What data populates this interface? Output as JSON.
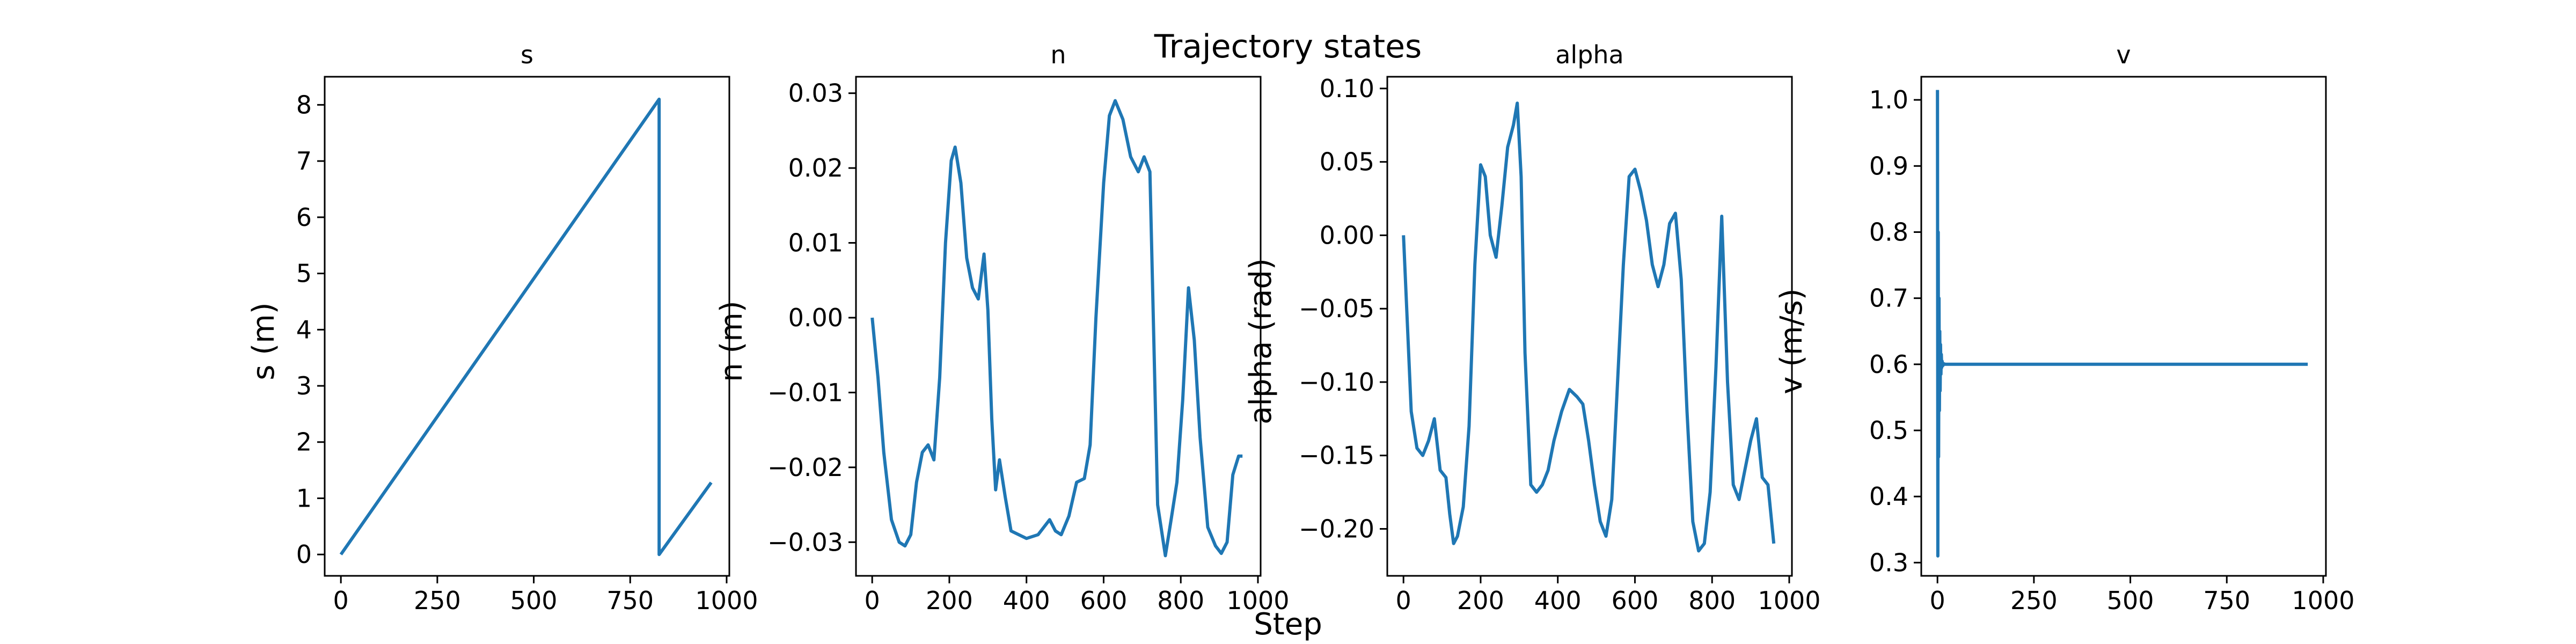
{
  "figure": {
    "suptitle": "Trajectory states",
    "xlabel": "Step"
  },
  "chart_data": [
    {
      "type": "line",
      "title": "s",
      "ylabel": "s (m)",
      "xlim": [
        -42,
        1007
      ],
      "ylim": [
        -0.38,
        8.5
      ],
      "xticks": [
        0,
        250,
        500,
        750,
        1000
      ],
      "yticks": [
        0,
        1,
        2,
        3,
        4,
        5,
        6,
        7,
        8
      ],
      "tick_labels_x": [
        "0",
        "250",
        "500",
        "750",
        "1000"
      ],
      "tick_labels_y": [
        "0",
        "1",
        "2",
        "3",
        "4",
        "5",
        "6",
        "7",
        "8"
      ],
      "color": "#1f77b4",
      "grid": false,
      "series": [
        {
          "x": [
            0,
            825,
            825,
            960
          ],
          "y": [
            0,
            8.1,
            0.0,
            1.28
          ]
        }
      ]
    },
    {
      "type": "line",
      "title": "n",
      "ylabel": "n (m)",
      "xlim": [
        -42,
        1007
      ],
      "ylim": [
        -0.0345,
        0.0322
      ],
      "xticks": [
        0,
        200,
        400,
        600,
        800,
        1000
      ],
      "yticks": [
        -0.03,
        -0.02,
        -0.01,
        0.0,
        0.01,
        0.02,
        0.03
      ],
      "tick_labels_x": [
        "0",
        "200",
        "400",
        "600",
        "800",
        "1000"
      ],
      "tick_labels_y": [
        "−0.03",
        "−0.02",
        "−0.01",
        "0.00",
        "0.01",
        "0.02",
        "0.03"
      ],
      "color": "#1f77b4",
      "grid": false,
      "series": [
        {
          "x": [
            0,
            15,
            30,
            50,
            70,
            85,
            100,
            115,
            130,
            145,
            160,
            175,
            190,
            205,
            215,
            230,
            245,
            260,
            275,
            290,
            300,
            310,
            320,
            330,
            345,
            360,
            380,
            400,
            430,
            460,
            475,
            490,
            510,
            530,
            550,
            565,
            580,
            600,
            615,
            630,
            650,
            670,
            690,
            705,
            720,
            740,
            760,
            775,
            790,
            805,
            820,
            835,
            850,
            870,
            890,
            905,
            920,
            935,
            950,
            960
          ],
          "y": [
            0.0,
            -0.008,
            -0.018,
            -0.027,
            -0.03,
            -0.0305,
            -0.029,
            -0.022,
            -0.018,
            -0.017,
            -0.019,
            -0.008,
            0.01,
            0.021,
            0.0228,
            0.018,
            0.008,
            0.004,
            0.0025,
            0.0085,
            0.001,
            -0.0135,
            -0.023,
            -0.019,
            -0.024,
            -0.0285,
            -0.029,
            -0.0295,
            -0.029,
            -0.027,
            -0.0285,
            -0.029,
            -0.0265,
            -0.022,
            -0.0215,
            -0.017,
            0.0,
            0.018,
            0.027,
            0.029,
            0.0265,
            0.0215,
            0.0195,
            0.0215,
            0.0195,
            -0.025,
            -0.0318,
            -0.027,
            -0.022,
            -0.011,
            0.004,
            -0.003,
            -0.016,
            -0.028,
            -0.0305,
            -0.0315,
            -0.03,
            -0.021,
            -0.0185,
            -0.0185
          ]
        }
      ]
    },
    {
      "type": "line",
      "title": "alpha",
      "ylabel": "alpha (rad)",
      "xlim": [
        -42,
        1007
      ],
      "ylim": [
        -0.232,
        0.108
      ],
      "xticks": [
        0,
        200,
        400,
        600,
        800,
        1000
      ],
      "yticks": [
        -0.2,
        -0.15,
        -0.1,
        -0.05,
        0.0,
        0.05,
        0.1
      ],
      "tick_labels_x": [
        "0",
        "200",
        "400",
        "600",
        "800",
        "1000"
      ],
      "tick_labels_y": [
        "−0.20",
        "−0.15",
        "−0.10",
        "−0.05",
        "0.00",
        "0.05",
        "0.10"
      ],
      "color": "#1f77b4",
      "grid": false,
      "series": [
        {
          "x": [
            0,
            10,
            20,
            35,
            50,
            65,
            80,
            95,
            110,
            120,
            130,
            140,
            155,
            170,
            185,
            200,
            212,
            225,
            240,
            255,
            270,
            285,
            295,
            305,
            315,
            330,
            345,
            360,
            375,
            390,
            410,
            430,
            450,
            465,
            480,
            495,
            510,
            525,
            540,
            555,
            570,
            585,
            600,
            615,
            630,
            645,
            660,
            675,
            690,
            705,
            720,
            735,
            750,
            765,
            780,
            795,
            810,
            825,
            840,
            855,
            870,
            885,
            900,
            915,
            930,
            945,
            960
          ],
          "y": [
            0.0,
            -0.06,
            -0.12,
            -0.145,
            -0.15,
            -0.14,
            -0.125,
            -0.16,
            -0.165,
            -0.19,
            -0.21,
            -0.205,
            -0.185,
            -0.13,
            -0.02,
            0.048,
            0.04,
            0.0,
            -0.015,
            0.02,
            0.06,
            0.075,
            0.09,
            0.04,
            -0.08,
            -0.17,
            -0.175,
            -0.17,
            -0.16,
            -0.14,
            -0.12,
            -0.105,
            -0.11,
            -0.115,
            -0.14,
            -0.17,
            -0.195,
            -0.205,
            -0.18,
            -0.1,
            -0.02,
            0.04,
            0.045,
            0.03,
            0.01,
            -0.02,
            -0.035,
            -0.02,
            0.008,
            0.015,
            -0.03,
            -0.12,
            -0.195,
            -0.215,
            -0.21,
            -0.175,
            -0.09,
            0.013,
            -0.1,
            -0.17,
            -0.18,
            -0.16,
            -0.14,
            -0.125,
            -0.165,
            -0.17,
            -0.21
          ]
        }
      ]
    },
    {
      "type": "line",
      "title": "v",
      "ylabel": "v (m/s)",
      "xlim": [
        -42,
        1007
      ],
      "ylim": [
        0.28,
        1.035
      ],
      "xticks": [
        0,
        250,
        500,
        750,
        1000
      ],
      "yticks": [
        0.3,
        0.4,
        0.5,
        0.6,
        0.7,
        0.8,
        0.9,
        1.0
      ],
      "tick_labels_x": [
        "0",
        "250",
        "500",
        "750",
        "1000"
      ],
      "tick_labels_y": [
        "0.3",
        "0.4",
        "0.5",
        "0.6",
        "0.7",
        "0.8",
        "0.9",
        "1.0"
      ],
      "color": "#1f77b4",
      "grid": false,
      "series": [
        {
          "x": [
            0,
            1,
            2,
            3,
            4,
            5,
            6,
            7,
            8,
            9,
            10,
            11,
            12,
            14,
            16,
            20,
            30,
            960
          ],
          "y": [
            1.015,
            0.31,
            0.8,
            0.46,
            0.7,
            0.53,
            0.65,
            0.56,
            0.63,
            0.585,
            0.615,
            0.595,
            0.605,
            0.598,
            0.601,
            0.6,
            0.6,
            0.6
          ]
        }
      ]
    }
  ]
}
